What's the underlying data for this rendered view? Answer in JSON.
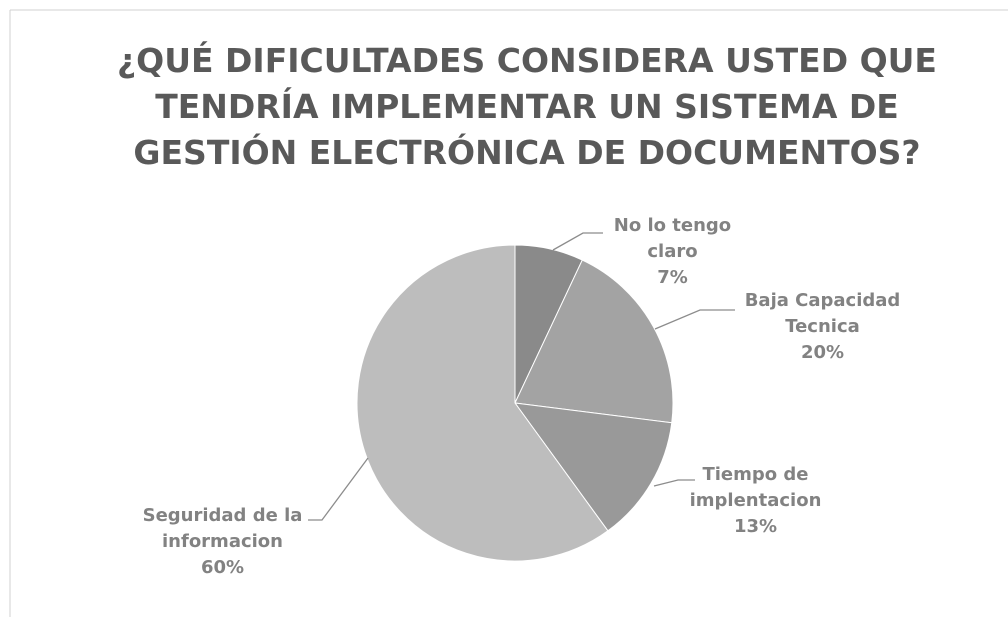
{
  "chart_data": {
    "type": "pie",
    "title": "¿QUÉ DIFICULTADES CONSIDERA USTED QUE TENDRÍA IMPLEMENTAR UN SISTEMA DE GESTIÓN ELECTRÓNICA DE DOCUMENTOS?",
    "categories": [
      "No lo tengo claro",
      "Baja Capacidad Tecnica",
      "Tiempo de implentacion",
      "Seguridad de la informacion"
    ],
    "values": [
      7,
      20,
      13,
      60
    ],
    "value_labels": [
      "7%",
      "20%",
      "13%",
      "60%"
    ],
    "colors": [
      "#8a8a8a",
      "#a3a3a3",
      "#999999",
      "#bdbdbd"
    ]
  }
}
